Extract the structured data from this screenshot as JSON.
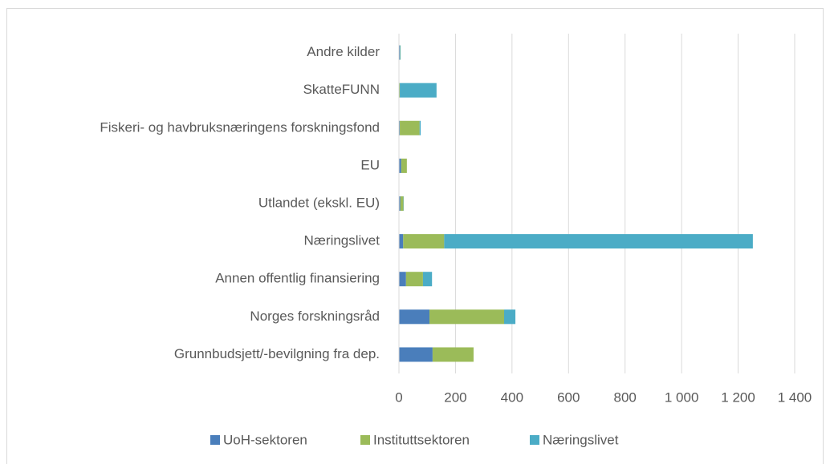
{
  "chart_data": {
    "type": "bar",
    "orientation": "horizontal",
    "stacked": true,
    "categories": [
      "Andre kilder",
      "SkatteFUNN",
      "Fiskeri- og havbruksnæringens forskningsfond",
      "EU",
      "Utlandet (ekskl. EU)",
      "Næringslivet",
      "Annen offentlig finansiering",
      "Norges forskningsråd",
      "Grunnbudsjett/-bevilgning fra dep."
    ],
    "series": [
      {
        "name": "UoH-sektoren",
        "color": "#4a7ebb",
        "values": [
          3,
          0,
          3,
          8,
          5,
          15,
          25,
          108,
          119
        ]
      },
      {
        "name": "Instituttsektoren",
        "color": "#9bbb59",
        "values": [
          1,
          3,
          70,
          20,
          11,
          145,
          60,
          264,
          145
        ]
      },
      {
        "name": "Næringslivet",
        "color": "#4bacc6",
        "values": [
          2,
          130,
          4,
          0,
          1,
          1092,
          32,
          40,
          0
        ]
      }
    ],
    "xlim": [
      0,
      1400
    ],
    "xticks": [
      0,
      200,
      400,
      600,
      800,
      {
        "value": 1000,
        "label": "1 000"
      },
      {
        "value": 1200,
        "label": "1 200"
      },
      {
        "value": 1400,
        "label": "1 400"
      }
    ],
    "grid": true,
    "legend": "bottom"
  }
}
